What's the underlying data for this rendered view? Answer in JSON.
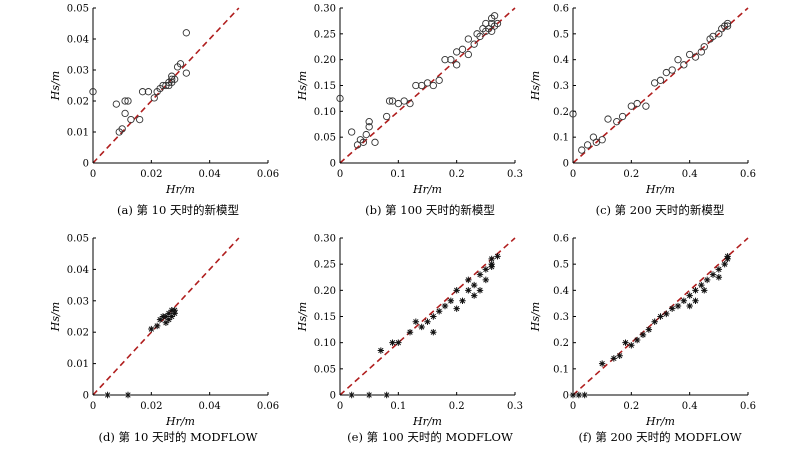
{
  "chart_data": [
    {
      "id": "a",
      "type": "scatter",
      "marker": "circle",
      "caption": "(a) 第 10 天时的新模型",
      "xlabel": "Hr/m",
      "ylabel": "Hs/m",
      "xlim": [
        0,
        0.06
      ],
      "ylim": [
        0,
        0.05
      ],
      "xticks": [
        "0",
        "0.02",
        "0.04",
        "0.06"
      ],
      "yticks": [
        "0",
        "0.01",
        "0.02",
        "0.03",
        "0.04",
        "0.05"
      ],
      "reference_line": "1:1",
      "points": [
        [
          0,
          0.023
        ],
        [
          0.008,
          0.019
        ],
        [
          0.009,
          0.01
        ],
        [
          0.01,
          0.011
        ],
        [
          0.011,
          0.02
        ],
        [
          0.012,
          0.02
        ],
        [
          0.011,
          0.016
        ],
        [
          0.013,
          0.014
        ],
        [
          0.016,
          0.014
        ],
        [
          0.017,
          0.023
        ],
        [
          0.019,
          0.023
        ],
        [
          0.021,
          0.021
        ],
        [
          0.022,
          0.023
        ],
        [
          0.023,
          0.024
        ],
        [
          0.024,
          0.025
        ],
        [
          0.025,
          0.025
        ],
        [
          0.026,
          0.025
        ],
        [
          0.026,
          0.026
        ],
        [
          0.027,
          0.026
        ],
        [
          0.027,
          0.027
        ],
        [
          0.027,
          0.028
        ],
        [
          0.028,
          0.027
        ],
        [
          0.029,
          0.031
        ],
        [
          0.03,
          0.032
        ],
        [
          0.032,
          0.029
        ],
        [
          0.032,
          0.042
        ]
      ]
    },
    {
      "id": "b",
      "type": "scatter",
      "marker": "circle",
      "caption": "(b) 第 100 天时的新模型",
      "xlabel": "Hr/m",
      "ylabel": "Hs/m",
      "xlim": [
        0,
        0.3
      ],
      "ylim": [
        0,
        0.3
      ],
      "xticks": [
        "0",
        "0.1",
        "0.2",
        "0.3"
      ],
      "yticks": [
        "0",
        "0.05",
        "0.10",
        "0.15",
        "0.20",
        "0.25",
        "0.30"
      ],
      "reference_line": "1:1",
      "points": [
        [
          0,
          0.125
        ],
        [
          0.02,
          0.06
        ],
        [
          0.03,
          0.035
        ],
        [
          0.035,
          0.045
        ],
        [
          0.04,
          0.04
        ],
        [
          0.045,
          0.055
        ],
        [
          0.05,
          0.08
        ],
        [
          0.05,
          0.07
        ],
        [
          0.06,
          0.04
        ],
        [
          0.08,
          0.09
        ],
        [
          0.085,
          0.12
        ],
        [
          0.09,
          0.12
        ],
        [
          0.1,
          0.115
        ],
        [
          0.11,
          0.12
        ],
        [
          0.12,
          0.115
        ],
        [
          0.13,
          0.15
        ],
        [
          0.14,
          0.15
        ],
        [
          0.15,
          0.155
        ],
        [
          0.16,
          0.15
        ],
        [
          0.17,
          0.16
        ],
        [
          0.18,
          0.2
        ],
        [
          0.19,
          0.2
        ],
        [
          0.2,
          0.215
        ],
        [
          0.2,
          0.19
        ],
        [
          0.21,
          0.22
        ],
        [
          0.22,
          0.21
        ],
        [
          0.22,
          0.24
        ],
        [
          0.23,
          0.23
        ],
        [
          0.235,
          0.25
        ],
        [
          0.24,
          0.245
        ],
        [
          0.245,
          0.26
        ],
        [
          0.25,
          0.255
        ],
        [
          0.25,
          0.27
        ],
        [
          0.255,
          0.26
        ],
        [
          0.26,
          0.27
        ],
        [
          0.26,
          0.28
        ],
        [
          0.26,
          0.255
        ],
        [
          0.265,
          0.265
        ],
        [
          0.265,
          0.285
        ],
        [
          0.27,
          0.27
        ]
      ]
    },
    {
      "id": "c",
      "type": "scatter",
      "marker": "circle",
      "caption": "(c) 第 200 天时的新模型",
      "xlabel": "Hr/m",
      "ylabel": "Hs/m",
      "xlim": [
        0,
        0.6
      ],
      "ylim": [
        0,
        0.6
      ],
      "xticks": [
        "0",
        "0.2",
        "0.4",
        "0.6"
      ],
      "yticks": [
        "0",
        "0.1",
        "0.2",
        "0.3",
        "0.4",
        "0.5",
        "0.6"
      ],
      "reference_line": "1:1",
      "points": [
        [
          0,
          0.19
        ],
        [
          0.03,
          0.05
        ],
        [
          0.05,
          0.07
        ],
        [
          0.07,
          0.1
        ],
        [
          0.08,
          0.08
        ],
        [
          0.1,
          0.09
        ],
        [
          0.12,
          0.17
        ],
        [
          0.15,
          0.16
        ],
        [
          0.17,
          0.18
        ],
        [
          0.2,
          0.22
        ],
        [
          0.22,
          0.23
        ],
        [
          0.25,
          0.22
        ],
        [
          0.28,
          0.31
        ],
        [
          0.3,
          0.32
        ],
        [
          0.32,
          0.35
        ],
        [
          0.34,
          0.36
        ],
        [
          0.36,
          0.4
        ],
        [
          0.38,
          0.38
        ],
        [
          0.4,
          0.42
        ],
        [
          0.42,
          0.41
        ],
        [
          0.44,
          0.43
        ],
        [
          0.45,
          0.45
        ],
        [
          0.47,
          0.48
        ],
        [
          0.48,
          0.49
        ],
        [
          0.5,
          0.5
        ],
        [
          0.51,
          0.52
        ],
        [
          0.52,
          0.53
        ],
        [
          0.53,
          0.53
        ],
        [
          0.53,
          0.54
        ]
      ]
    },
    {
      "id": "d",
      "type": "scatter",
      "marker": "star",
      "caption": "(d) 第 10 天时的 MODFLOW",
      "xlabel": "Hr/m",
      "ylabel": "Hs/m",
      "xlim": [
        0,
        0.06
      ],
      "ylim": [
        0,
        0.05
      ],
      "xticks": [
        "0",
        "0.02",
        "0.04",
        "0.06"
      ],
      "yticks": [
        "0",
        "0.01",
        "0.02",
        "0.03",
        "0.04",
        "0.05"
      ],
      "reference_line": "1:1",
      "points": [
        [
          0.005,
          0
        ],
        [
          0.012,
          0
        ],
        [
          0.02,
          0.021
        ],
        [
          0.022,
          0.022
        ],
        [
          0.023,
          0.024
        ],
        [
          0.024,
          0.025
        ],
        [
          0.025,
          0.023
        ],
        [
          0.025,
          0.025
        ],
        [
          0.026,
          0.024
        ],
        [
          0.026,
          0.026
        ],
        [
          0.027,
          0.027
        ],
        [
          0.027,
          0.025
        ],
        [
          0.028,
          0.026
        ],
        [
          0.028,
          0.027
        ]
      ]
    },
    {
      "id": "e",
      "type": "scatter",
      "marker": "star",
      "caption": "(e) 第 100 天时的 MODFLOW",
      "xlabel": "Hr/m",
      "ylabel": "Hs/m",
      "xlim": [
        0,
        0.3
      ],
      "ylim": [
        0,
        0.3
      ],
      "xticks": [
        "0",
        "0.1",
        "0.2",
        "0.3"
      ],
      "yticks": [
        "0",
        "0.05",
        "0.10",
        "0.15",
        "0.20",
        "0.25",
        "0.30"
      ],
      "reference_line": "1:1",
      "points": [
        [
          0.02,
          0
        ],
        [
          0.05,
          0
        ],
        [
          0.08,
          0
        ],
        [
          0.07,
          0.085
        ],
        [
          0.09,
          0.1
        ],
        [
          0.1,
          0.1
        ],
        [
          0.12,
          0.12
        ],
        [
          0.13,
          0.14
        ],
        [
          0.14,
          0.13
        ],
        [
          0.15,
          0.14
        ],
        [
          0.16,
          0.12
        ],
        [
          0.16,
          0.15
        ],
        [
          0.17,
          0.16
        ],
        [
          0.18,
          0.17
        ],
        [
          0.19,
          0.18
        ],
        [
          0.2,
          0.2
        ],
        [
          0.2,
          0.165
        ],
        [
          0.21,
          0.18
        ],
        [
          0.22,
          0.2
        ],
        [
          0.22,
          0.22
        ],
        [
          0.23,
          0.19
        ],
        [
          0.23,
          0.21
        ],
        [
          0.24,
          0.23
        ],
        [
          0.24,
          0.2
        ],
        [
          0.25,
          0.22
        ],
        [
          0.25,
          0.24
        ],
        [
          0.26,
          0.245
        ],
        [
          0.26,
          0.25
        ],
        [
          0.26,
          0.26
        ],
        [
          0.27,
          0.265
        ]
      ]
    },
    {
      "id": "f",
      "type": "scatter",
      "marker": "star",
      "caption": "(f) 第 200 天时的 MODFLOW",
      "xlabel": "Hr/m",
      "ylabel": "Hs/m",
      "xlim": [
        0,
        0.6
      ],
      "ylim": [
        0,
        0.6
      ],
      "xticks": [
        "0",
        "0.2",
        "0.4",
        "0.6"
      ],
      "yticks": [
        "0",
        "0.1",
        "0.2",
        "0.3",
        "0.4",
        "0.5",
        "0.6"
      ],
      "reference_line": "1:1",
      "points": [
        [
          0,
          0
        ],
        [
          0.02,
          0
        ],
        [
          0.04,
          0
        ],
        [
          0.1,
          0.12
        ],
        [
          0.14,
          0.14
        ],
        [
          0.16,
          0.15
        ],
        [
          0.18,
          0.2
        ],
        [
          0.2,
          0.19
        ],
        [
          0.22,
          0.21
        ],
        [
          0.24,
          0.23
        ],
        [
          0.26,
          0.25
        ],
        [
          0.28,
          0.28
        ],
        [
          0.3,
          0.3
        ],
        [
          0.32,
          0.31
        ],
        [
          0.34,
          0.33
        ],
        [
          0.36,
          0.34
        ],
        [
          0.38,
          0.36
        ],
        [
          0.4,
          0.38
        ],
        [
          0.4,
          0.34
        ],
        [
          0.42,
          0.4
        ],
        [
          0.42,
          0.36
        ],
        [
          0.44,
          0.42
        ],
        [
          0.45,
          0.4
        ],
        [
          0.46,
          0.44
        ],
        [
          0.48,
          0.46
        ],
        [
          0.5,
          0.48
        ],
        [
          0.5,
          0.45
        ],
        [
          0.52,
          0.5
        ],
        [
          0.53,
          0.52
        ],
        [
          0.53,
          0.53
        ]
      ]
    }
  ]
}
